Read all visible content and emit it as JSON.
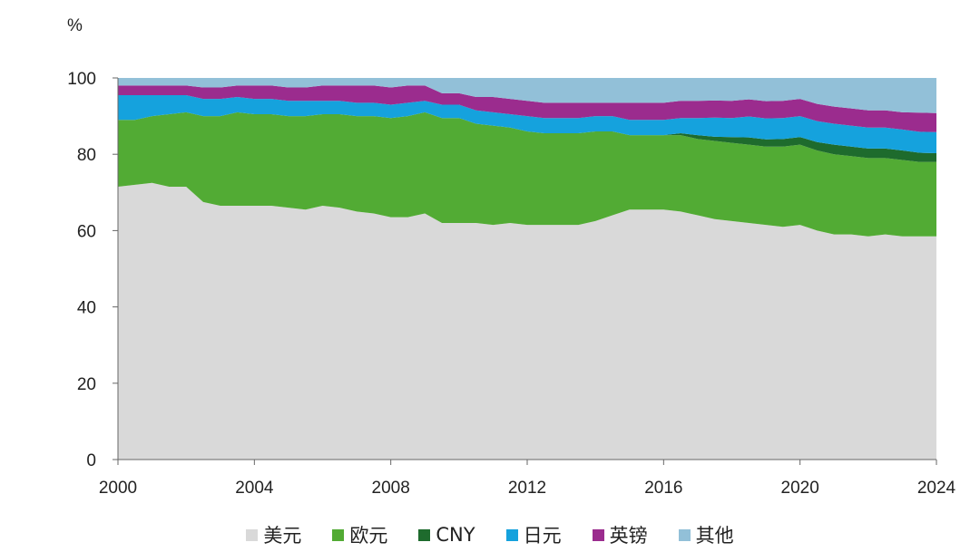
{
  "chart_data": {
    "type": "area",
    "stacked": true,
    "unit_label": "%",
    "ylim": [
      0,
      100
    ],
    "yticks": [
      "0",
      "20",
      "40",
      "60",
      "80",
      "100"
    ],
    "xlim": [
      2000,
      2024
    ],
    "xticks": [
      "2000",
      "2004",
      "2008",
      "2012",
      "2016",
      "2020",
      "2024"
    ],
    "grid": false,
    "legend_position": "bottom",
    "x": [
      2000,
      2000.5,
      2001,
      2001.5,
      2002,
      2002.5,
      2003,
      2003.5,
      2004,
      2004.5,
      2005,
      2005.5,
      2006,
      2006.5,
      2007,
      2007.5,
      2008,
      2008.5,
      2009,
      2009.5,
      2010,
      2010.5,
      2011,
      2011.5,
      2012,
      2012.5,
      2013,
      2013.5,
      2014,
      2014.5,
      2015,
      2015.5,
      2016,
      2016.5,
      2017,
      2017.5,
      2018,
      2018.5,
      2019,
      2019.5,
      2020,
      2020.5,
      2021,
      2021.5,
      2022,
      2022.5,
      2023,
      2023.5,
      2024
    ],
    "series": [
      {
        "name": "美元",
        "color": "#d9d9d9",
        "values": [
          71.5,
          72.0,
          72.5,
          71.5,
          71.5,
          67.5,
          66.5,
          66.5,
          66.5,
          66.5,
          66.0,
          65.5,
          66.5,
          66.0,
          65.0,
          64.5,
          63.5,
          63.5,
          64.5,
          62.0,
          62.0,
          62.0,
          61.5,
          62.0,
          61.5,
          61.5,
          61.5,
          61.5,
          62.5,
          64.0,
          65.5,
          65.5,
          65.5,
          65.0,
          64.0,
          63.0,
          62.5,
          62.0,
          61.5,
          61.0,
          61.5,
          60.0,
          59.0,
          59.0,
          58.5,
          59.0,
          58.5,
          58.5,
          58.5
        ]
      },
      {
        "name": "欧元",
        "color": "#52ab34",
        "values": [
          17.5,
          17.0,
          17.5,
          19.0,
          19.5,
          22.5,
          23.5,
          24.5,
          24.0,
          24.0,
          24.0,
          24.5,
          24.0,
          24.5,
          25.0,
          25.5,
          26.0,
          26.5,
          26.5,
          27.5,
          27.5,
          26.0,
          26.0,
          25.0,
          24.5,
          24.0,
          24.0,
          24.0,
          23.5,
          22.0,
          19.5,
          19.5,
          19.5,
          20.0,
          20.0,
          20.5,
          20.5,
          20.5,
          20.5,
          21.0,
          21.0,
          21.0,
          21.0,
          20.5,
          20.5,
          20.0,
          20.0,
          19.5,
          19.5
        ]
      },
      {
        "name": "CNY",
        "color": "#1e6b2d",
        "values": [
          0,
          0,
          0,
          0,
          0,
          0,
          0,
          0,
          0,
          0,
          0,
          0,
          0,
          0,
          0,
          0,
          0,
          0,
          0,
          0,
          0,
          0,
          0,
          0,
          0,
          0,
          0,
          0,
          0,
          0,
          0,
          0,
          0,
          0.5,
          1.0,
          1.1,
          1.5,
          1.9,
          1.9,
          2.0,
          2.0,
          2.2,
          2.5,
          2.5,
          2.5,
          2.5,
          2.5,
          2.4,
          2.3
        ]
      },
      {
        "name": "日元",
        "color": "#15a2dd",
        "values": [
          6.5,
          6.5,
          5.5,
          5.0,
          4.5,
          4.5,
          4.5,
          4.0,
          4.0,
          4.0,
          4.0,
          4.0,
          3.5,
          3.5,
          3.5,
          3.5,
          3.5,
          3.5,
          3.0,
          3.5,
          3.5,
          3.5,
          3.5,
          3.5,
          4.0,
          4.0,
          4.0,
          4.0,
          4.0,
          4.0,
          4.0,
          4.0,
          4.0,
          4.0,
          4.5,
          5.0,
          5.0,
          5.5,
          5.5,
          5.5,
          5.5,
          5.5,
          5.5,
          5.5,
          5.5,
          5.5,
          5.5,
          5.5,
          5.5
        ]
      },
      {
        "name": "英镑",
        "color": "#9b2c8e",
        "values": [
          2.5,
          2.5,
          2.5,
          2.5,
          2.5,
          3.0,
          3.0,
          3.0,
          3.5,
          3.5,
          3.5,
          3.5,
          4.0,
          4.0,
          4.5,
          4.5,
          4.5,
          4.5,
          4.0,
          3.0,
          3.0,
          3.5,
          4.0,
          4.0,
          4.0,
          4.0,
          4.0,
          4.0,
          3.5,
          3.5,
          4.5,
          4.5,
          4.5,
          4.5,
          4.5,
          4.5,
          4.5,
          4.5,
          4.5,
          4.5,
          4.5,
          4.5,
          4.5,
          4.5,
          4.5,
          4.5,
          4.5,
          5.0,
          5.0
        ]
      },
      {
        "name": "其他",
        "color": "#92c0d8",
        "values": [
          2.0,
          2.0,
          2.0,
          2.0,
          2.0,
          2.5,
          2.5,
          2.0,
          2.0,
          2.0,
          2.5,
          2.5,
          2.0,
          2.0,
          2.0,
          2.0,
          2.5,
          2.0,
          2.0,
          4.0,
          4.0,
          5.0,
          5.0,
          5.5,
          6.0,
          6.5,
          6.5,
          6.5,
          6.5,
          6.5,
          6.5,
          6.5,
          6.5,
          6.0,
          6.0,
          5.9,
          6.0,
          5.6,
          6.1,
          6.0,
          5.5,
          6.8,
          7.5,
          8.0,
          8.5,
          8.5,
          9.0,
          9.1,
          9.2
        ]
      }
    ]
  }
}
